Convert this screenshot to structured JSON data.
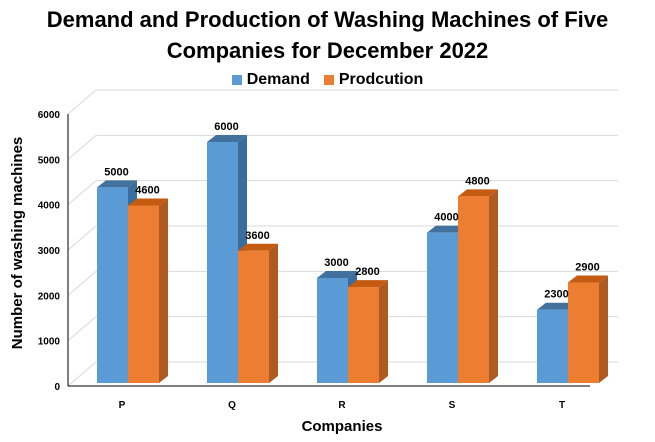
{
  "chart_data": {
    "type": "bar",
    "title_lines": [
      "Demand and Production of Washing Machines of Five",
      "Companies for December 2022"
    ],
    "xlabel": "Companies",
    "ylabel": "Number of washing machines",
    "categories": [
      "P",
      "Q",
      "R",
      "S",
      "T"
    ],
    "yticks": [
      "0",
      "1000",
      "2000",
      "3000",
      "4000",
      "5000",
      "6000"
    ],
    "ylim": [
      0,
      6000
    ],
    "legend_position": "top-center",
    "series": [
      {
        "name": "Demand",
        "color": "#5B9BD5",
        "side_color": "#3A6C9C",
        "top_color": "#41719C",
        "values": [
          5000,
          6000,
          3000,
          4000,
          2300
        ],
        "labels": [
          "5000",
          "6000",
          "3000",
          "4000",
          "2300"
        ]
      },
      {
        "name": "Prodcution",
        "color": "#ED7D31",
        "side_color": "#AE5A21",
        "top_color": "#C55A11",
        "values": [
          4600,
          3600,
          2800,
          4800,
          2900
        ],
        "labels": [
          "4600",
          "3600",
          "2800",
          "4800",
          "2900"
        ]
      }
    ]
  }
}
